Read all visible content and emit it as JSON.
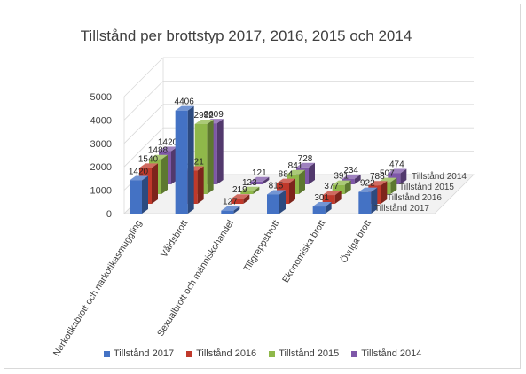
{
  "chart_data": {
    "type": "bar",
    "title": "Tillstånd per brottstyp 2017, 2016, 2015 och 2014",
    "categories": [
      "Narkotikabrott och narkotikasmuggling",
      "Våldsbrott",
      "Sexualbrott och människohandel",
      "Tillgreppsbrott",
      "Ekonomiska brott",
      "Övriga brott"
    ],
    "series": [
      {
        "name": "Tillstånd 2017",
        "color": "#4472c4",
        "values": [
          1420,
          4406,
          127,
          815,
          301,
          922
        ]
      },
      {
        "name": "Tillstånd 2016",
        "color": "#c0392b",
        "values": [
          1540,
          1421,
          219,
          884,
          377,
          788
        ]
      },
      {
        "name": "Tillstånd  2015",
        "color": "#8fb84a",
        "values": [
          1488,
          2992,
          123,
          841,
          391,
          507
        ]
      },
      {
        "name": "Tillstånd 2014",
        "color": "#7e57a8",
        "values": [
          1420,
          2609,
          121,
          728,
          234,
          474
        ]
      }
    ],
    "depth_labels": [
      "Tillstånd 2014",
      "Tillstånd  2015",
      "Tillstånd 2016",
      "Tillstånd 2017"
    ],
    "yticks": [
      0,
      1000,
      2000,
      3000,
      4000,
      5000
    ],
    "ylim": [
      0,
      5000
    ],
    "grid": true,
    "legend_position": "bottom"
  }
}
